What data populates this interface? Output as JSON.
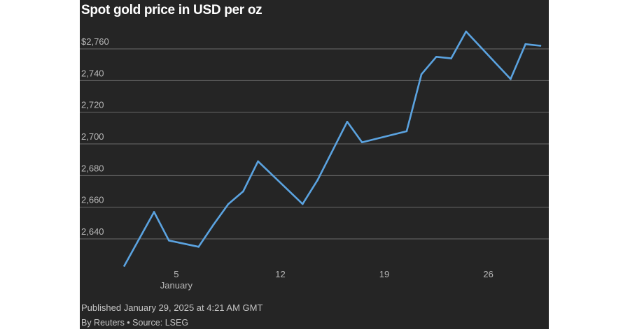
{
  "chart_data": {
    "type": "line",
    "title": "Spot gold price in USD per oz",
    "xlabel": "January",
    "ylabel": "",
    "ylim": [
      2620,
      2770
    ],
    "yticks": [
      2640,
      2660,
      2680,
      2700,
      2720,
      2740,
      2760
    ],
    "ytick_labels": [
      "2,640",
      "2,660",
      "2,680",
      "2,700",
      "2,720",
      "2,740",
      "$2,760"
    ],
    "xlim": [
      1.0,
      29.6
    ],
    "xticks": [
      5,
      12,
      19,
      26
    ],
    "xtick_labels": [
      "5",
      "12",
      "19",
      "26"
    ],
    "x_sublabel": "January",
    "grid": "horizontal",
    "legend": "none",
    "line_color": "#5ba3e0",
    "series": [
      {
        "x": [
          1.5,
          3.5,
          4.5,
          6.5,
          7.5,
          8.5,
          9.5,
          10.5,
          13.5,
          14.5,
          16.5,
          17.5,
          20.5,
          21.5,
          22.5,
          23.5,
          24.5,
          27.5,
          28.5,
          29.5
        ],
        "values": [
          2623,
          2657,
          2639,
          2635,
          2649,
          2662,
          2670,
          2689,
          2662,
          2677,
          2714,
          2701,
          2708,
          2744,
          2755,
          2754,
          2771,
          2741,
          2763,
          2762
        ]
      }
    ]
  },
  "footer": {
    "published": "Published January 29, 2025 at 4:21 AM GMT",
    "byline": "By Reuters • Source: LSEG"
  }
}
